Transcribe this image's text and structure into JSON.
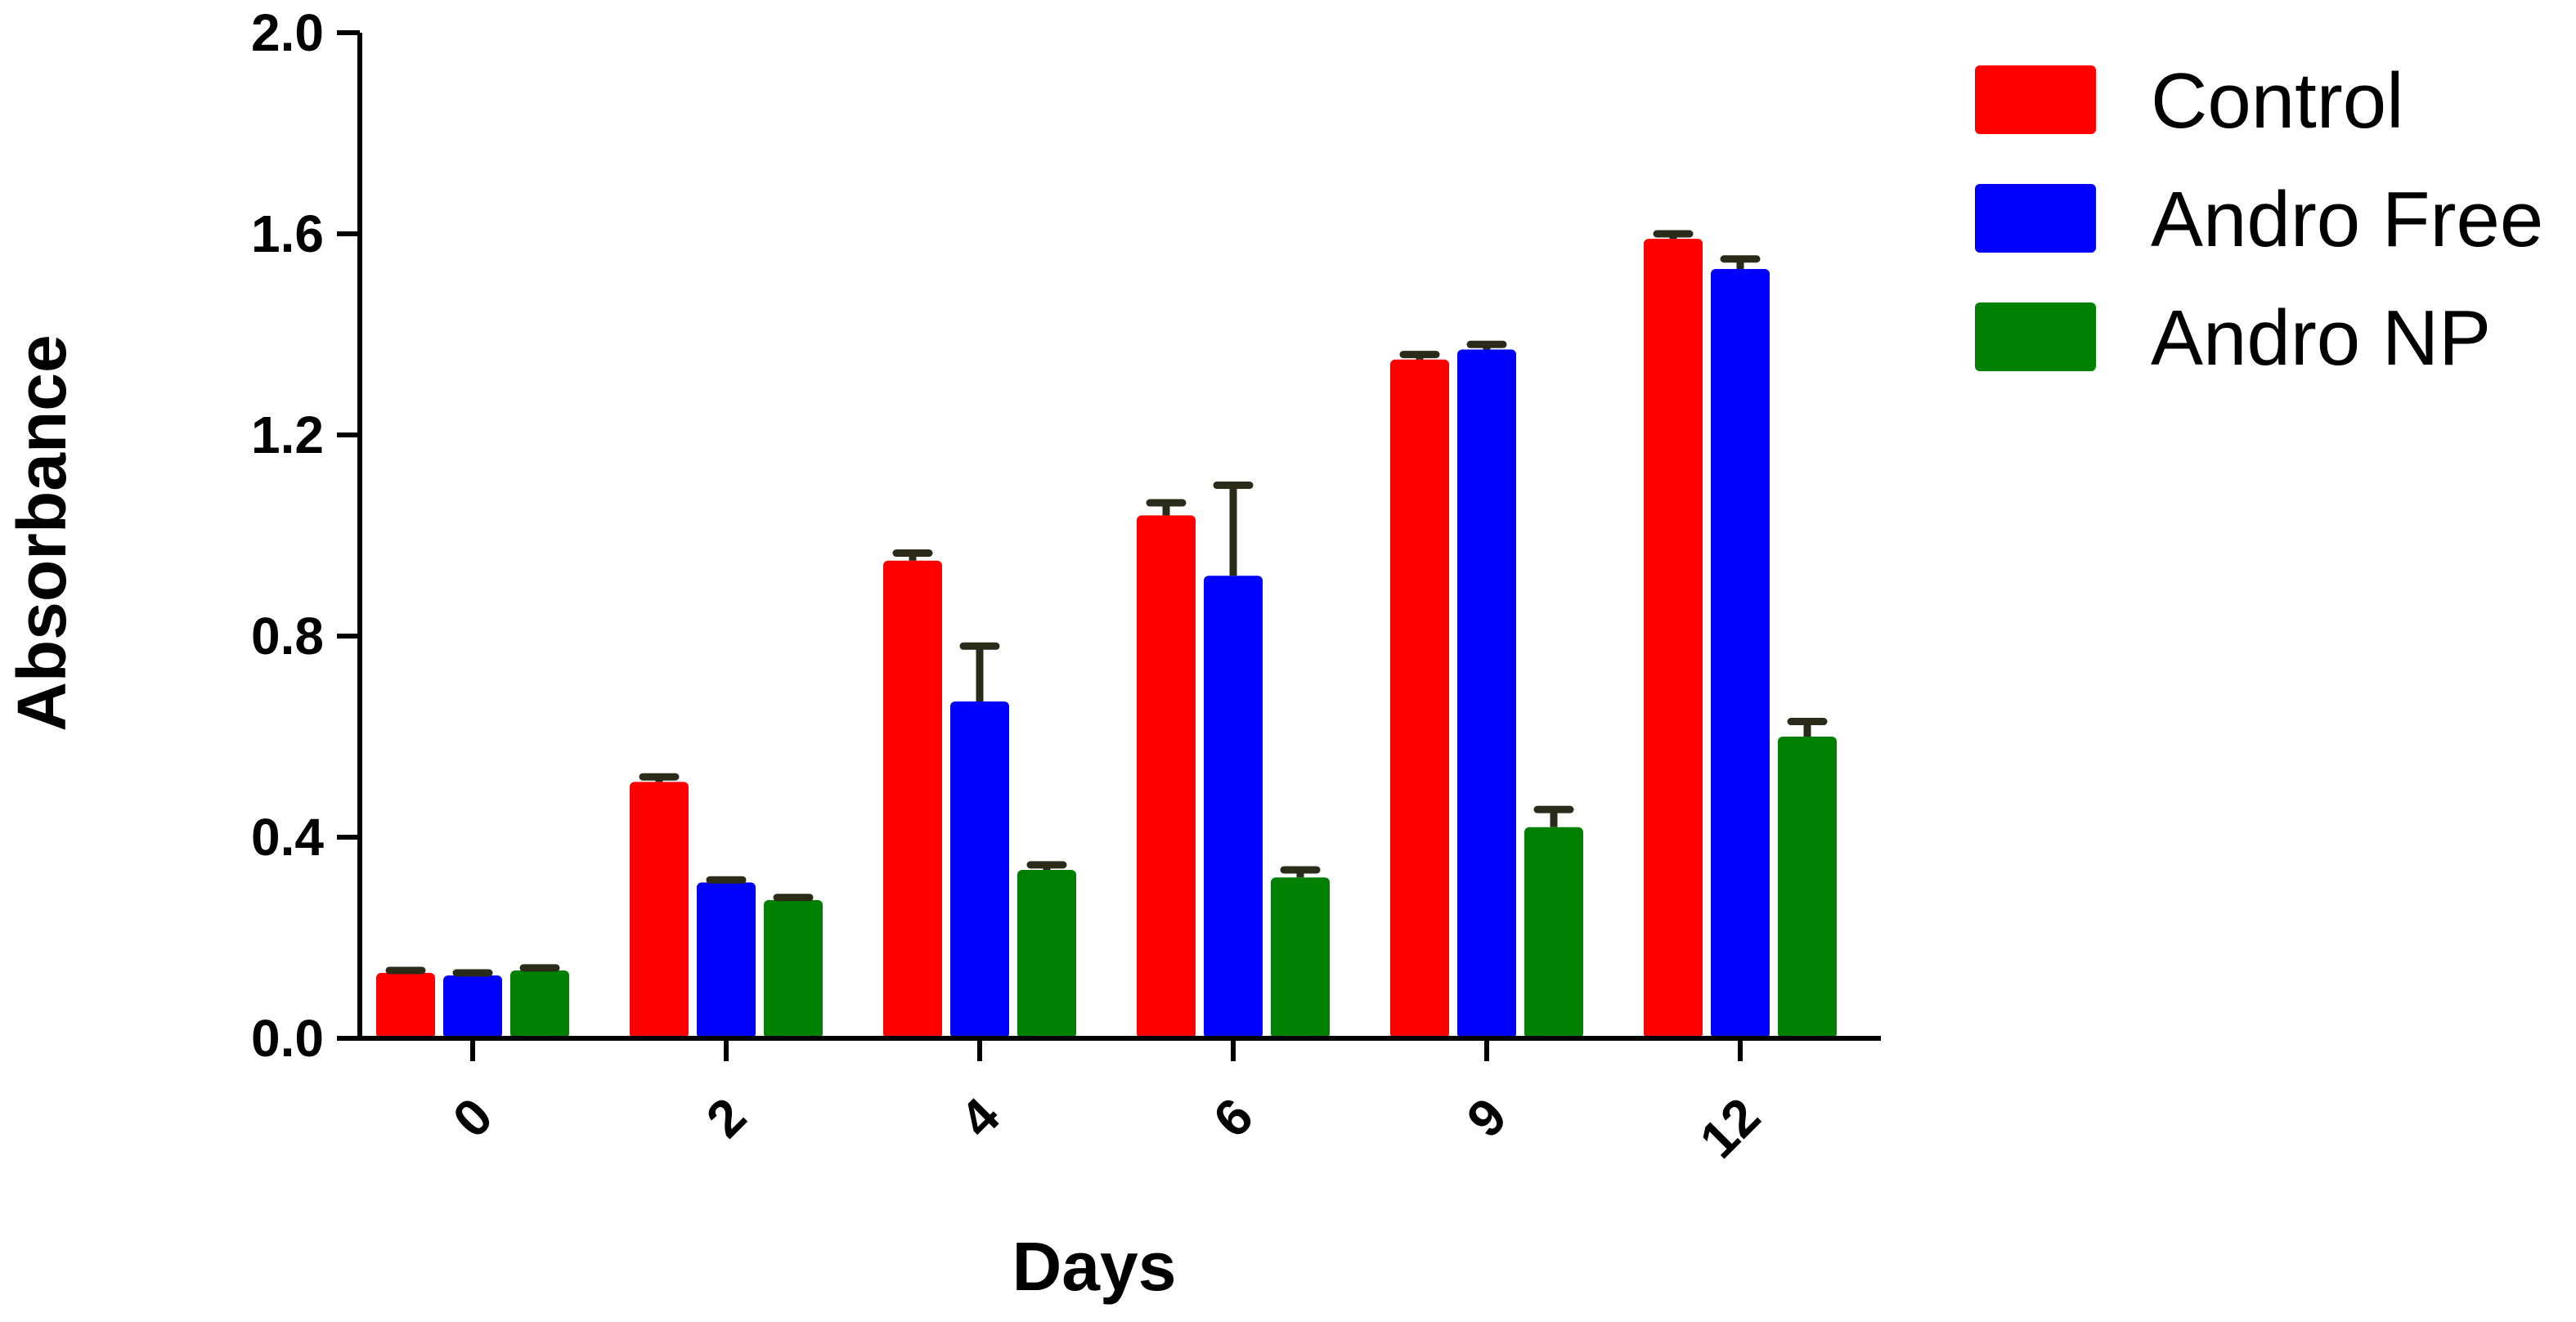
{
  "chart_data": {
    "type": "bar",
    "xlabel": "Days",
    "ylabel": "Absorbance",
    "categories": [
      "0",
      "2",
      "4",
      "6",
      "9",
      "12"
    ],
    "ylim": [
      0,
      2.0
    ],
    "yticks": [
      "0.0",
      "0.4",
      "0.8",
      "1.2",
      "1.6",
      "2.0"
    ],
    "tick_rotation_deg": -45,
    "grid": false,
    "legend_position": "top-right",
    "error_bar_color": "#2b2b1a",
    "series": [
      {
        "name": "Control",
        "color": "#ff0000",
        "values": [
          0.13,
          0.51,
          0.95,
          1.04,
          1.35,
          1.59
        ],
        "errors": [
          0.005,
          0.01,
          0.015,
          0.025,
          0.01,
          0.01
        ]
      },
      {
        "name": "Andro Free",
        "color": "#0000ff",
        "values": [
          0.125,
          0.31,
          0.67,
          0.92,
          1.37,
          1.53
        ],
        "errors": [
          0.005,
          0.005,
          0.11,
          0.18,
          0.01,
          0.02
        ]
      },
      {
        "name": "Andro NP",
        "color": "#008000",
        "values": [
          0.135,
          0.275,
          0.335,
          0.32,
          0.42,
          0.6
        ],
        "errors": [
          0.005,
          0.005,
          0.01,
          0.015,
          0.035,
          0.03
        ]
      }
    ]
  }
}
